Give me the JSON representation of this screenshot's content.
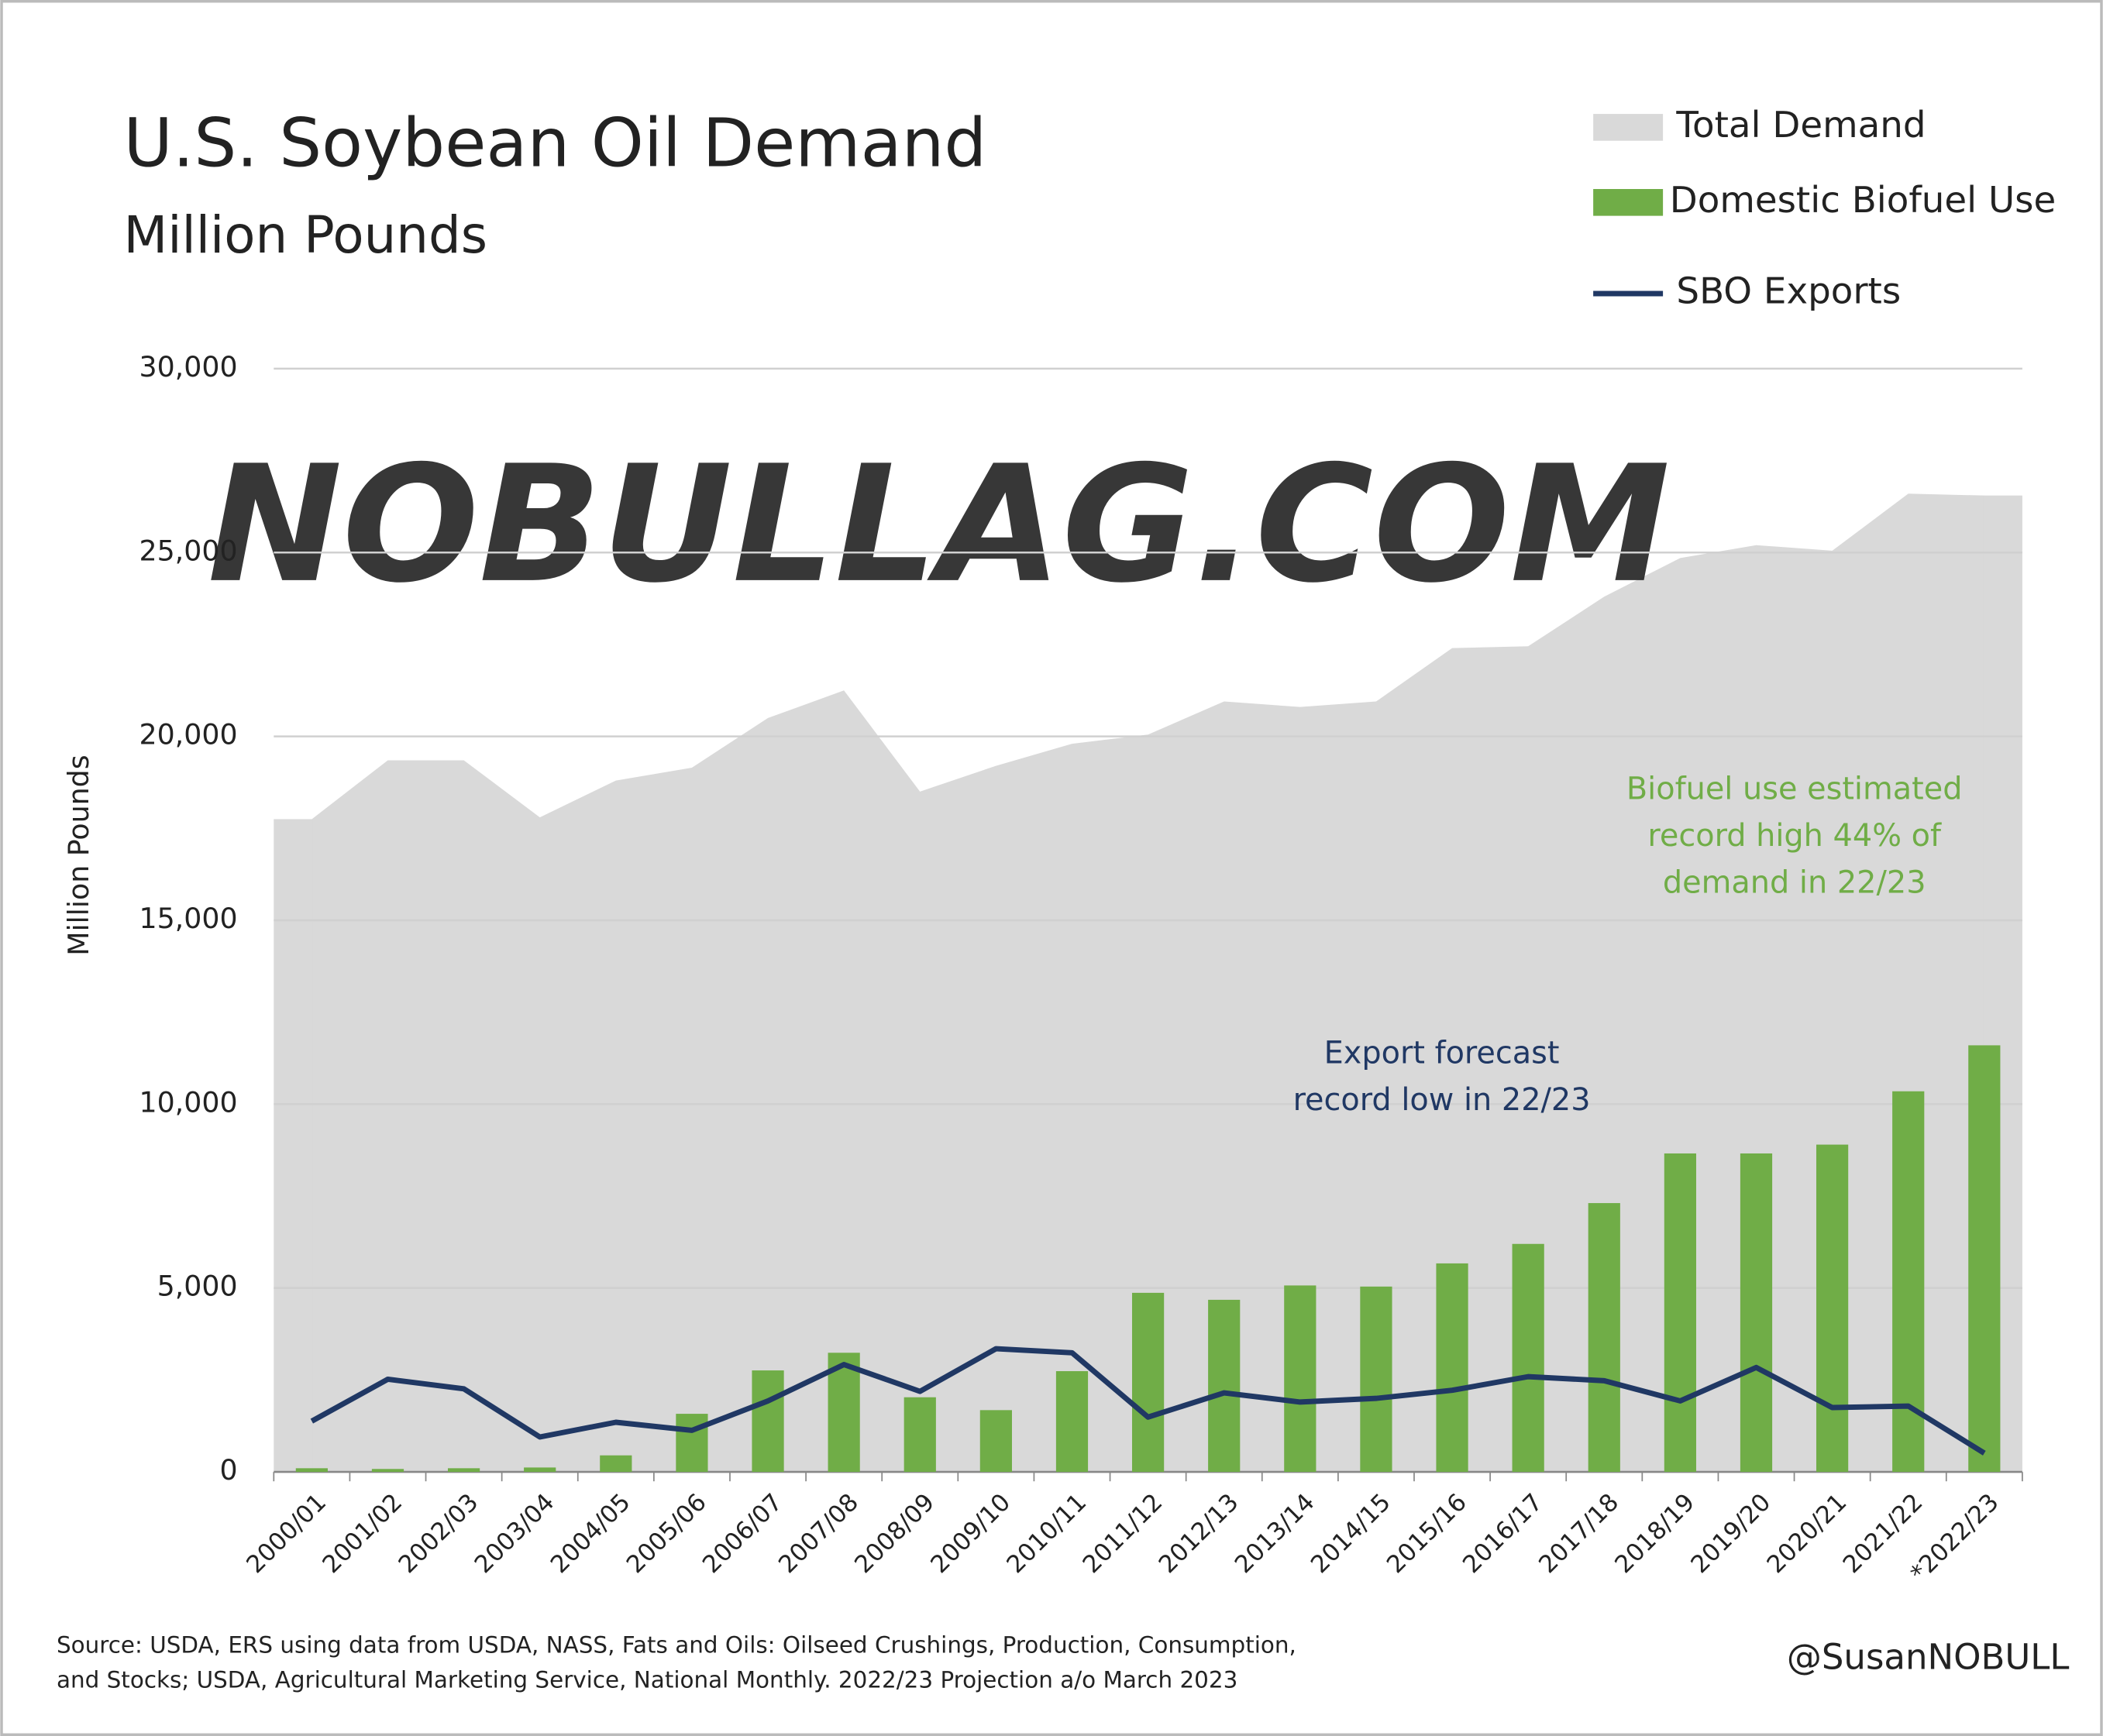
{
  "chart_data": {
    "type": "combo",
    "title": "U.S. Soybean Oil Demand",
    "subtitle": "Million Pounds",
    "y_label": "Million Pounds",
    "watermark": "NOBULLAG.COM",
    "categories": [
      "2000/01",
      "2001/02",
      "2002/03",
      "2003/04",
      "2004/05",
      "2005/06",
      "2006/07",
      "2007/08",
      "2008/09",
      "2009/10",
      "2010/11",
      "2011/12",
      "2012/13",
      "2013/14",
      "2014/15",
      "2015/16",
      "2016/17",
      "2017/18",
      "2018/19",
      "2019/20",
      "2020/21",
      "2021/22",
      "*2022/23"
    ],
    "series": [
      {
        "name": "Total Demand",
        "kind": "area",
        "color": "#d9d9d9",
        "values": [
          17750,
          19350,
          19350,
          17800,
          18800,
          19150,
          20500,
          21250,
          18500,
          19200,
          19800,
          20050,
          20950,
          20800,
          20950,
          22400,
          22450,
          23800,
          24850,
          25200,
          25050,
          26600,
          26550
        ]
      },
      {
        "name": "Domestic Biofuel Use",
        "kind": "bar",
        "color": "#70ad47",
        "values": [
          100,
          80,
          100,
          120,
          450,
          1580,
          2760,
          3240,
          2030,
          1680,
          2740,
          4870,
          4680,
          5070,
          5040,
          5670,
          6200,
          7310,
          8660,
          8660,
          8900,
          10350,
          11600
        ]
      },
      {
        "name": "SBO Exports",
        "kind": "line",
        "color": "#203864",
        "values": [
          1380,
          2520,
          2260,
          950,
          1350,
          1130,
          1930,
          2920,
          2190,
          3350,
          3240,
          1490,
          2150,
          1900,
          2000,
          2220,
          2590,
          2480,
          1930,
          2840,
          1750,
          1790,
          510
        ]
      }
    ],
    "ylim": [
      0,
      30000
    ],
    "yticks": [
      0,
      {
        "value": 5000,
        "label": "5,000"
      },
      {
        "value": 10000,
        "label": "10,000"
      },
      {
        "value": 15000,
        "label": "15,000"
      },
      {
        "value": 20000,
        "label": "20,000"
      },
      {
        "value": 25000,
        "label": "25,000"
      },
      {
        "value": 30000,
        "label": "30,000"
      }
    ],
    "grid": true,
    "legend": "top-right",
    "annotations": [
      {
        "lines": [
          "Biofuel use estimated",
          "record high 44% of",
          "demand in 22/23"
        ],
        "color": "#70ad47"
      },
      {
        "lines": [
          "Export forecast",
          "record low in 22/23"
        ],
        "color": "#203864"
      }
    ],
    "source": [
      "Source: USDA, ERS using data from USDA, NASS, Fats and Oils: Oilseed Crushings, Production, Consumption,",
      "and Stocks; USDA, Agricultural Marketing Service, National Monthly. 2022/23 Projection a/o March 2023"
    ],
    "credit": "@SusanNOBULL"
  }
}
